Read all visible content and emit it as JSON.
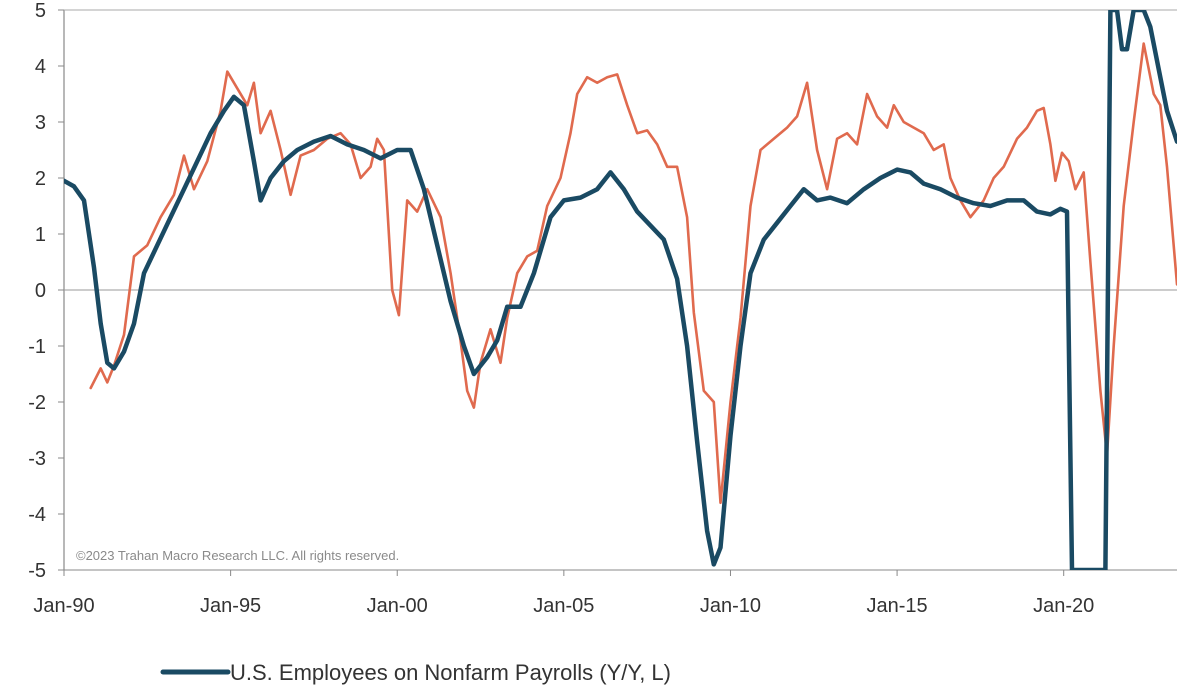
{
  "chart_data": {
    "type": "line",
    "watermark": "©2023 Trahan Macro Research LLC. All rights reserved.",
    "x_tick_labels": [
      "Jan-90",
      "Jan-95",
      "Jan-00",
      "Jan-05",
      "Jan-10",
      "Jan-15",
      "Jan-20"
    ],
    "x_tick_years": [
      1990,
      1995,
      2000,
      2005,
      2010,
      2015,
      2020
    ],
    "xlim": [
      1990.0,
      2023.4
    ],
    "y_tick_labels": [
      "5",
      "4",
      "3",
      "2",
      "1",
      "0",
      "-1",
      "-2",
      "-3",
      "-4",
      "-5"
    ],
    "y_tick_values": [
      5,
      4,
      3,
      2,
      1,
      0,
      -1,
      -2,
      -3,
      -4,
      -5
    ],
    "ylim": [
      -5,
      5
    ],
    "zero_line": true,
    "grid": false,
    "legend": {
      "placement": "bottom",
      "entries": [
        {
          "label": "U.S. Employees on Nonfarm Payrolls (Y/Y, L)",
          "color": "#1a4a63"
        }
      ]
    },
    "series": [
      {
        "name": "U.S. Employees on Nonfarm Payrolls (Y/Y, L)",
        "color": "#1a4a63",
        "points": [
          [
            1990.0,
            1.95
          ],
          [
            1990.3,
            1.85
          ],
          [
            1990.6,
            1.6
          ],
          [
            1990.9,
            0.4
          ],
          [
            1991.1,
            -0.6
          ],
          [
            1991.3,
            -1.3
          ],
          [
            1991.5,
            -1.4
          ],
          [
            1991.8,
            -1.1
          ],
          [
            1992.1,
            -0.6
          ],
          [
            1992.4,
            0.3
          ],
          [
            1992.8,
            0.8
          ],
          [
            1993.2,
            1.3
          ],
          [
            1993.6,
            1.8
          ],
          [
            1994.0,
            2.3
          ],
          [
            1994.4,
            2.8
          ],
          [
            1994.8,
            3.2
          ],
          [
            1995.1,
            3.45
          ],
          [
            1995.4,
            3.3
          ],
          [
            1995.7,
            2.3
          ],
          [
            1995.9,
            1.6
          ],
          [
            1996.2,
            2.0
          ],
          [
            1996.6,
            2.3
          ],
          [
            1997.0,
            2.5
          ],
          [
            1997.5,
            2.65
          ],
          [
            1998.0,
            2.75
          ],
          [
            1998.5,
            2.6
          ],
          [
            1999.0,
            2.5
          ],
          [
            1999.5,
            2.35
          ],
          [
            2000.0,
            2.5
          ],
          [
            2000.4,
            2.5
          ],
          [
            2000.8,
            1.8
          ],
          [
            2001.2,
            0.8
          ],
          [
            2001.6,
            -0.2
          ],
          [
            2002.0,
            -1.0
          ],
          [
            2002.3,
            -1.5
          ],
          [
            2002.7,
            -1.2
          ],
          [
            2003.0,
            -0.9
          ],
          [
            2003.3,
            -0.3
          ],
          [
            2003.7,
            -0.3
          ],
          [
            2004.1,
            0.3
          ],
          [
            2004.6,
            1.3
          ],
          [
            2005.0,
            1.6
          ],
          [
            2005.5,
            1.65
          ],
          [
            2006.0,
            1.8
          ],
          [
            2006.4,
            2.1
          ],
          [
            2006.8,
            1.8
          ],
          [
            2007.2,
            1.4
          ],
          [
            2007.6,
            1.15
          ],
          [
            2008.0,
            0.9
          ],
          [
            2008.4,
            0.2
          ],
          [
            2008.7,
            -1.0
          ],
          [
            2009.0,
            -2.7
          ],
          [
            2009.3,
            -4.3
          ],
          [
            2009.5,
            -4.9
          ],
          [
            2009.7,
            -4.6
          ],
          [
            2010.0,
            -2.6
          ],
          [
            2010.3,
            -1.0
          ],
          [
            2010.6,
            0.3
          ],
          [
            2011.0,
            0.9
          ],
          [
            2011.4,
            1.2
          ],
          [
            2011.8,
            1.5
          ],
          [
            2012.2,
            1.8
          ],
          [
            2012.6,
            1.6
          ],
          [
            2013.0,
            1.65
          ],
          [
            2013.5,
            1.55
          ],
          [
            2014.0,
            1.8
          ],
          [
            2014.5,
            2.0
          ],
          [
            2015.0,
            2.15
          ],
          [
            2015.4,
            2.1
          ],
          [
            2015.8,
            1.9
          ],
          [
            2016.3,
            1.8
          ],
          [
            2016.8,
            1.65
          ],
          [
            2017.3,
            1.55
          ],
          [
            2017.8,
            1.5
          ],
          [
            2018.3,
            1.6
          ],
          [
            2018.8,
            1.6
          ],
          [
            2019.2,
            1.4
          ],
          [
            2019.6,
            1.35
          ],
          [
            2019.9,
            1.45
          ],
          [
            2020.1,
            1.4
          ],
          [
            2020.25,
            -5.0
          ],
          [
            2021.25,
            -5.0
          ],
          [
            2021.4,
            5.0
          ],
          [
            2021.6,
            5.0
          ],
          [
            2021.75,
            4.3
          ],
          [
            2021.9,
            4.3
          ],
          [
            2022.1,
            5.0
          ],
          [
            2022.4,
            5.0
          ],
          [
            2022.6,
            4.7
          ],
          [
            2022.9,
            3.8
          ],
          [
            2023.1,
            3.2
          ],
          [
            2023.4,
            2.65
          ]
        ]
      },
      {
        "name": "",
        "color": "#e06a4e",
        "points": [
          [
            1990.8,
            -1.75
          ],
          [
            1991.1,
            -1.4
          ],
          [
            1991.3,
            -1.65
          ],
          [
            1991.5,
            -1.35
          ],
          [
            1991.8,
            -0.8
          ],
          [
            1992.1,
            0.6
          ],
          [
            1992.5,
            0.8
          ],
          [
            1992.9,
            1.3
          ],
          [
            1993.3,
            1.7
          ],
          [
            1993.6,
            2.4
          ],
          [
            1993.9,
            1.8
          ],
          [
            1994.3,
            2.3
          ],
          [
            1994.7,
            3.2
          ],
          [
            1994.9,
            3.9
          ],
          [
            1995.2,
            3.6
          ],
          [
            1995.5,
            3.3
          ],
          [
            1995.7,
            3.7
          ],
          [
            1995.9,
            2.8
          ],
          [
            1996.2,
            3.2
          ],
          [
            1996.5,
            2.5
          ],
          [
            1996.8,
            1.7
          ],
          [
            1997.1,
            2.4
          ],
          [
            1997.5,
            2.5
          ],
          [
            1997.9,
            2.7
          ],
          [
            1998.3,
            2.8
          ],
          [
            1998.6,
            2.6
          ],
          [
            1998.9,
            2.0
          ],
          [
            1999.2,
            2.2
          ],
          [
            1999.4,
            2.7
          ],
          [
            1999.6,
            2.5
          ],
          [
            1999.85,
            0.0
          ],
          [
            2000.05,
            -0.45
          ],
          [
            2000.3,
            1.6
          ],
          [
            2000.6,
            1.4
          ],
          [
            2000.9,
            1.8
          ],
          [
            2001.3,
            1.3
          ],
          [
            2001.6,
            0.3
          ],
          [
            2001.9,
            -0.9
          ],
          [
            2002.1,
            -1.8
          ],
          [
            2002.3,
            -2.1
          ],
          [
            2002.5,
            -1.3
          ],
          [
            2002.8,
            -0.7
          ],
          [
            2003.1,
            -1.3
          ],
          [
            2003.3,
            -0.5
          ],
          [
            2003.6,
            0.3
          ],
          [
            2003.9,
            0.6
          ],
          [
            2004.2,
            0.7
          ],
          [
            2004.5,
            1.5
          ],
          [
            2004.9,
            2.0
          ],
          [
            2005.2,
            2.8
          ],
          [
            2005.4,
            3.5
          ],
          [
            2005.7,
            3.8
          ],
          [
            2006.0,
            3.7
          ],
          [
            2006.3,
            3.8
          ],
          [
            2006.6,
            3.85
          ],
          [
            2006.9,
            3.3
          ],
          [
            2007.2,
            2.8
          ],
          [
            2007.5,
            2.85
          ],
          [
            2007.8,
            2.6
          ],
          [
            2008.1,
            2.2
          ],
          [
            2008.4,
            2.2
          ],
          [
            2008.7,
            1.3
          ],
          [
            2008.9,
            -0.4
          ],
          [
            2009.2,
            -1.8
          ],
          [
            2009.5,
            -2.0
          ],
          [
            2009.7,
            -3.8
          ],
          [
            2010.0,
            -2.0
          ],
          [
            2010.3,
            -0.5
          ],
          [
            2010.6,
            1.5
          ],
          [
            2010.9,
            2.5
          ],
          [
            2011.3,
            2.7
          ],
          [
            2011.7,
            2.9
          ],
          [
            2012.0,
            3.1
          ],
          [
            2012.3,
            3.7
          ],
          [
            2012.6,
            2.5
          ],
          [
            2012.9,
            1.8
          ],
          [
            2013.2,
            2.7
          ],
          [
            2013.5,
            2.8
          ],
          [
            2013.8,
            2.6
          ],
          [
            2014.1,
            3.5
          ],
          [
            2014.4,
            3.1
          ],
          [
            2014.7,
            2.9
          ],
          [
            2014.9,
            3.3
          ],
          [
            2015.2,
            3.0
          ],
          [
            2015.5,
            2.9
          ],
          [
            2015.8,
            2.8
          ],
          [
            2016.1,
            2.5
          ],
          [
            2016.4,
            2.6
          ],
          [
            2016.6,
            2.0
          ],
          [
            2016.9,
            1.6
          ],
          [
            2017.2,
            1.3
          ],
          [
            2017.6,
            1.6
          ],
          [
            2017.9,
            2.0
          ],
          [
            2018.2,
            2.2
          ],
          [
            2018.6,
            2.7
          ],
          [
            2018.9,
            2.9
          ],
          [
            2019.2,
            3.2
          ],
          [
            2019.4,
            3.25
          ],
          [
            2019.6,
            2.6
          ],
          [
            2019.75,
            1.95
          ],
          [
            2019.95,
            2.45
          ],
          [
            2020.15,
            2.3
          ],
          [
            2020.35,
            1.8
          ],
          [
            2020.6,
            2.1
          ],
          [
            2020.8,
            0.5
          ],
          [
            2021.1,
            -1.8
          ],
          [
            2021.3,
            -2.95
          ],
          [
            2021.5,
            -1.0
          ],
          [
            2021.8,
            1.5
          ],
          [
            2022.1,
            3.0
          ],
          [
            2022.4,
            4.4
          ],
          [
            2022.7,
            3.5
          ],
          [
            2022.9,
            3.3
          ],
          [
            2023.1,
            2.2
          ],
          [
            2023.4,
            0.1
          ]
        ]
      }
    ]
  }
}
